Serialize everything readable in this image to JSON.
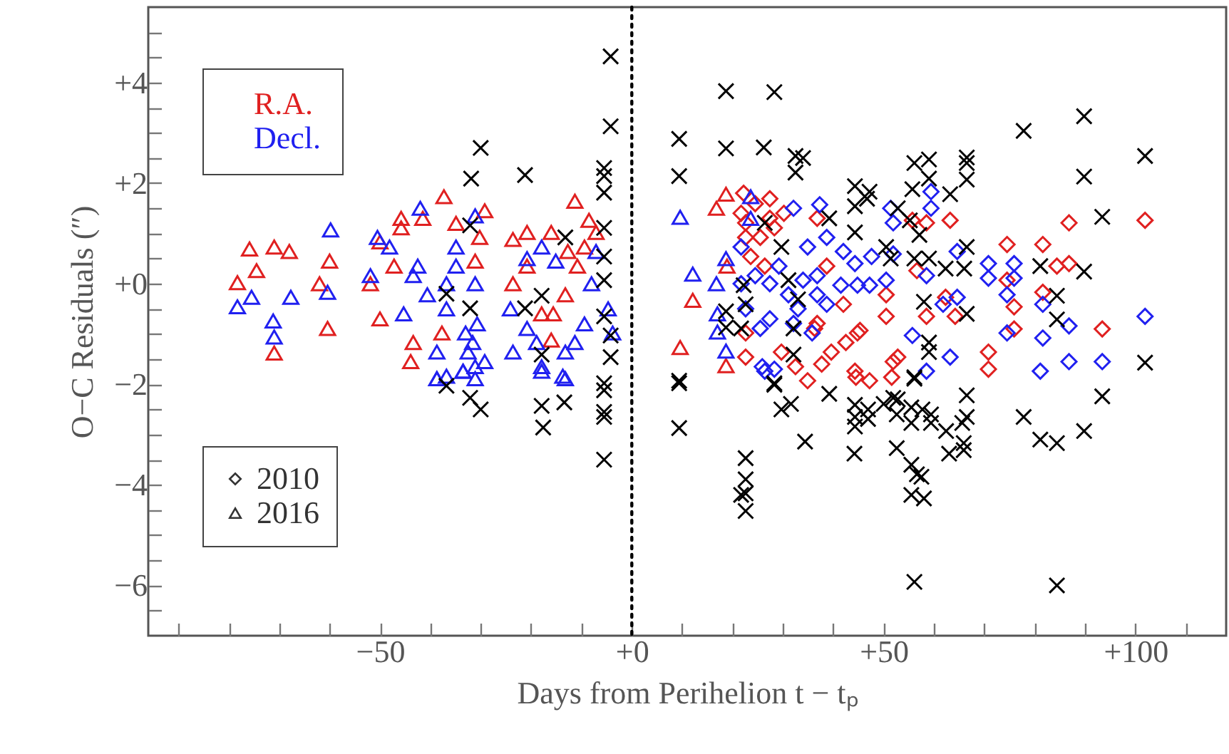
{
  "chart_data": {
    "type": "scatter",
    "xlabel": "Days from Perihelion t − tₚ",
    "ylabel": "O−C Residuals (″)",
    "xlim": [
      -96,
      118
    ],
    "ylim": [
      -7,
      5.5
    ],
    "xticks": [
      {
        "value": -90,
        "label": null
      },
      {
        "value": -80,
        "label": null
      },
      {
        "value": -70,
        "label": null
      },
      {
        "value": -60,
        "label": null
      },
      {
        "value": -50,
        "label": "−50"
      },
      {
        "value": -40,
        "label": null
      },
      {
        "value": -30,
        "label": null
      },
      {
        "value": -20,
        "label": null
      },
      {
        "value": -10,
        "label": null
      },
      {
        "value": 0,
        "label": "+0"
      },
      {
        "value": 10,
        "label": null
      },
      {
        "value": 20,
        "label": null
      },
      {
        "value": 30,
        "label": null
      },
      {
        "value": 40,
        "label": null
      },
      {
        "value": 50,
        "label": "+50"
      },
      {
        "value": 60,
        "label": null
      },
      {
        "value": 70,
        "label": null
      },
      {
        "value": 80,
        "label": null
      },
      {
        "value": 90,
        "label": null
      },
      {
        "value": 100,
        "label": "+100"
      },
      {
        "value": 110,
        "label": null
      }
    ],
    "yticks": [
      {
        "value": -6.5,
        "label": null
      },
      {
        "value": -6,
        "label": "−6"
      },
      {
        "value": -5.5,
        "label": null
      },
      {
        "value": -5,
        "label": null
      },
      {
        "value": -4.5,
        "label": null
      },
      {
        "value": -4,
        "label": "−4"
      },
      {
        "value": -3.5,
        "label": null
      },
      {
        "value": -3,
        "label": null
      },
      {
        "value": -2.5,
        "label": null
      },
      {
        "value": -2,
        "label": "−2"
      },
      {
        "value": -1.5,
        "label": null
      },
      {
        "value": -1,
        "label": null
      },
      {
        "value": -0.5,
        "label": null
      },
      {
        "value": 0,
        "label": "+0"
      },
      {
        "value": 0.5,
        "label": null
      },
      {
        "value": 1,
        "label": null
      },
      {
        "value": 1.5,
        "label": null
      },
      {
        "value": 2,
        "label": "+2"
      },
      {
        "value": 2.5,
        "label": null
      },
      {
        "value": 3,
        "label": null
      },
      {
        "value": 3.5,
        "label": null
      },
      {
        "value": 4,
        "label": "+4"
      },
      {
        "value": 4.5,
        "label": null
      },
      {
        "value": 5,
        "label": null
      }
    ],
    "legend": "left",
    "annotations": [
      "2010",
      "2016"
    ],
    "ref_lines": [
      {
        "axis": "x",
        "value": 0,
        "color": "#000000",
        "line_style": "dotted"
      }
    ],
    "series": [
      {
        "color": "#e02020",
        "marker": "diamond",
        "x": [
          22.2,
          27.4,
          22.6,
          25.5,
          27.4,
          30.2,
          23.6,
          26.4,
          36.8,
          38.7,
          36.3,
          22.6,
          29.7,
          32.5,
          34.9,
          37.7,
          39.6,
          42,
          42.5,
          44.3,
          45.3,
          47.2,
          50.5,
          50.5,
          51.9,
          52.8,
          55.7,
          56.6,
          58.5,
          58.5,
          62.3,
          63.2,
          64.2,
          70.8,
          70.8,
          74.5,
          74.5,
          75.9,
          75.9,
          81.6,
          81.6,
          84.4,
          86.8,
          86.8,
          93.4,
          101.9,
          44.8,
          44.5,
          51.6,
          21.7,
          24.5,
          28.3,
          22.6,
          36.8,
          22.6
        ],
        "values": [
          1.8,
          1.69,
          1.21,
          0.92,
          1.3,
          1.4,
          0.54,
          0.35,
          1.3,
          0.35,
          -0.89,
          -1.46,
          -1.36,
          -1.65,
          -1.93,
          -1.6,
          -1.36,
          -0.41,
          -1.17,
          -1.74,
          -0.93,
          -1.93,
          -0.22,
          -0.65,
          -1.55,
          -1.46,
          1.26,
          0.26,
          1.21,
          -0.65,
          -0.27,
          1.26,
          -0.65,
          -1.36,
          -1.7,
          0.78,
          0.07,
          -0.46,
          -0.9,
          0.78,
          -0.17,
          0.35,
          0.4,
          1.21,
          -0.9,
          1.26,
          -0.98,
          -1.86,
          -1.86,
          1.4,
          1.59,
          1.11,
          0.92,
          -0.79,
          -0.98
        ]
      },
      {
        "color": "#2020f0",
        "marker": "diamond",
        "x": [
          32.1,
          37.3,
          38.7,
          42,
          41.5,
          44.8,
          47.2,
          44.3,
          47.6,
          51.4,
          51.9,
          51.9,
          50.5,
          55.7,
          58.5,
          59.4,
          59.4,
          61.8,
          64.6,
          64.6,
          63.2,
          70.8,
          70.8,
          75.9,
          75.9,
          74.5,
          74.5,
          81.1,
          81.6,
          81.6,
          86.8,
          86.8,
          93.4,
          101.9,
          25.9,
          28.3,
          25.5,
          27.4,
          33,
          35.8,
          38.7,
          36.8,
          26.4,
          58.5,
          21.7,
          22.6,
          24.5,
          27.4,
          29.2,
          31.1,
          34,
          36.8,
          21.7,
          34.9,
          32.1
        ],
        "values": [
          1.5,
          1.57,
          0.92,
          0.64,
          -0.03,
          -0.03,
          -0.03,
          0.4,
          0.54,
          1.5,
          1.21,
          0.59,
          0.07,
          -1.03,
          0.16,
          1.83,
          1.5,
          -0.41,
          0.64,
          -0.27,
          -1.46,
          0.4,
          0.11,
          0.4,
          0.11,
          -0.22,
          -0.98,
          -1.74,
          -0.41,
          -1.08,
          -0.84,
          -1.55,
          -1.55,
          -0.65,
          -1.65,
          -1.7,
          -0.89,
          -0.7,
          -0.5,
          -0.98,
          -0.41,
          0.16,
          -1.74,
          -1.74,
          0,
          -0.5,
          0.16,
          0,
          0.35,
          -0.22,
          0.07,
          -0.22,
          0.73,
          0.73,
          -0.79
        ]
      },
      {
        "name": "R.A.",
        "color": "#e02020",
        "marker": "triangle",
        "x": [
          -75.9,
          -71,
          -68,
          -78.3,
          -74.5,
          -71,
          -60.4,
          -60,
          -62,
          -37.3,
          -45.8,
          -45.8,
          -41.5,
          -50,
          -43.4,
          -43.9,
          -29.2,
          -30.2,
          -51.9,
          -47.2,
          -34.9,
          -31.1,
          -37.7,
          -50,
          -11.3,
          -20.8,
          -23.6,
          -16,
          -8.5,
          -12.7,
          -23.6,
          -20.8,
          -17.9,
          -15.6,
          -13.2,
          -16,
          -7.1,
          -9.4,
          -10.8,
          9.6,
          12.1,
          16.8,
          18.7,
          18.7,
          18.9
        ],
        "values": [
          0.69,
          0.73,
          0.64,
          0.02,
          0.26,
          -1.38,
          -0.89,
          0.45,
          0,
          1.73,
          1.3,
          1.11,
          1.3,
          -0.7,
          -1.17,
          -1.55,
          1.45,
          0.92,
          0,
          0.35,
          1.2,
          0.45,
          -0.98,
          0.83,
          1.64,
          1.02,
          0.88,
          1.02,
          1.26,
          0.64,
          0,
          0.35,
          -0.6,
          -0.6,
          -0.22,
          -1.12,
          1.02,
          0.73,
          0.35,
          -1.27,
          -0.33,
          1.5,
          1.78,
          -1.63,
          0.35
        ]
      },
      {
        "name": "Decl.",
        "color": "#2020f0",
        "marker": "triangle",
        "x": [
          -78.3,
          -75.5,
          -71.2,
          -71,
          -67.7,
          -59.8,
          -60.4,
          -42,
          -50.5,
          -48.1,
          -43.4,
          -40.6,
          -36.8,
          -34.9,
          -33,
          -32.5,
          -31.1,
          -38.7,
          -36.8,
          -33.5,
          -31.1,
          -45.3,
          -51.9,
          -29.2,
          -38.7,
          -36.8,
          -42.5,
          -34.9,
          -31.1,
          -30.7,
          -31.6,
          -38.7,
          -33.5,
          -31.1,
          -23.6,
          -20.8,
          -17.9,
          -15.1,
          -20.8,
          -18.9,
          -17.9,
          -13.2,
          -11.3,
          -9.4,
          -7.1,
          -8,
          -4.7,
          -3.8,
          -24.1,
          -13.7,
          -17.9,
          -13.2,
          9.6,
          12.1,
          16.8,
          17,
          17,
          18.7,
          18.7,
          23.6,
          23.6
        ],
        "values": [
          -0.46,
          -0.27,
          -0.74,
          -1.06,
          -0.27,
          1.07,
          -0.17,
          1.5,
          0.92,
          0.73,
          0.16,
          -0.22,
          0,
          0.73,
          -0.98,
          -1.36,
          -1.65,
          -1.89,
          -1.84,
          -1.74,
          1.35,
          -0.6,
          0.16,
          -1.55,
          -1.36,
          -0.5,
          0.35,
          0.35,
          0,
          -0.8,
          -1.17,
          -1.89,
          -1.74,
          -1.89,
          -1.36,
          0.5,
          0.73,
          0.45,
          -0.89,
          -1.17,
          -1.65,
          -1.36,
          -1.17,
          -0.8,
          0.64,
          0,
          -0.5,
          -0.98,
          -0.5,
          -1.84,
          -1.74,
          -1.89,
          1.32,
          0.19,
          0,
          -0.6,
          -0.96,
          0.5,
          -1.34,
          1.73,
          1.3
        ]
      },
      {
        "color": "#000000",
        "marker": "cross",
        "x": [
          -4.2,
          -4.2,
          -30,
          -31.9,
          -21.2,
          -5.5,
          -5.5,
          -5.5,
          -5.5,
          -5.5,
          -5.5,
          -5.5,
          -4.2,
          -4.2,
          -32.1,
          -36.8,
          -32.1,
          -13.2,
          -17.9,
          -21.2,
          -17.9,
          -36.8,
          -32.1,
          -30,
          -17.9,
          -17.6,
          -13.4,
          -5.5,
          -5.5,
          -5.5,
          -5.5,
          -5.5,
          9.4,
          9.4,
          18.7,
          28.3,
          18.7,
          26.2,
          32.5,
          34,
          32.5,
          44.3,
          47.2,
          56.1,
          59,
          59,
          66.5,
          66.5,
          66.5,
          63.2,
          77.8,
          89.8,
          89.8,
          101.9,
          93.4,
          39.2,
          44.3,
          44.3,
          46.7,
          52.8,
          55.7,
          55.2,
          57.1,
          51.4,
          59,
          56.1,
          50.5,
          62.3,
          66,
          66.5,
          81.1,
          89.8,
          84.4,
          84.4,
          66.5,
          58,
          32.1,
          32.1,
          18.7,
          18.7,
          21.7,
          22.2,
          22.6,
          26.4,
          29.7,
          31.1,
          33,
          59,
          59,
          101.9,
          9.4,
          28.3,
          56.1,
          9.4,
          9.4,
          28.3,
          29.7,
          31.6,
          34.4,
          39.2,
          44.3,
          44.3,
          44.3,
          44.2,
          46.9,
          46.9,
          50,
          51.9,
          52.8,
          52.6,
          55.5,
          55.5,
          52.6,
          55.5,
          56.6,
          57.5,
          55.5,
          58,
          56.1,
          57.7,
          59.4,
          59.4,
          62.4,
          66.5,
          66.5,
          65.6,
          65.9,
          65.9,
          63,
          77.8,
          81.1,
          84.4,
          89.8,
          93.4,
          22.6,
          22.6,
          22.6,
          21.7,
          22.6,
          56.1,
          84.4
        ],
        "values": [
          4.52,
          3.13,
          2.7,
          2.09,
          2.16,
          2.3,
          2.14,
          1.81,
          1.11,
          0.54,
          0.07,
          -0.65,
          -1.03,
          -1.46,
          1.16,
          -0.2,
          -0.49,
          0.92,
          -0.24,
          -0.49,
          -1.41,
          -2.03,
          -2.27,
          -2.5,
          -2.43,
          -2.86,
          -2.36,
          -1.98,
          -2.12,
          -2.55,
          -2.65,
          -3.5,
          2.88,
          2.14,
          3.83,
          3.81,
          2.69,
          2.71,
          2.54,
          2.5,
          2.21,
          1.94,
          1.83,
          2.4,
          2.47,
          2.09,
          2.51,
          2.4,
          2.07,
          1.78,
          3.04,
          3.33,
          2.13,
          2.54,
          1.33,
          1.3,
          1.54,
          1.02,
          1.69,
          1.5,
          1.88,
          1.26,
          0.97,
          0.5,
          0.5,
          0.5,
          0.73,
          0.3,
          0.3,
          0.73,
          0.35,
          0.24,
          -0.24,
          -0.71,
          -0.6,
          -0.36,
          -0.89,
          -1.41,
          -0.55,
          -0.87,
          -0.89,
          -0.03,
          -0.41,
          1.21,
          0.73,
          0.07,
          -0.31,
          -1.17,
          -1.36,
          -1.57,
          -1.93,
          -1.98,
          -1.89,
          -1.98,
          -2.87,
          -2.01,
          -2.5,
          -2.39,
          -3.14,
          -2.19,
          -2.41,
          -2.65,
          -2.84,
          -3.38,
          -2.5,
          -2.69,
          -2.39,
          -2.27,
          -2.3,
          -2.6,
          -2.46,
          -2.77,
          -3.27,
          -3.6,
          -3.79,
          -3.84,
          -4.2,
          -4.27,
          -1.86,
          -2.5,
          -2.6,
          -2.77,
          -2.93,
          -2.22,
          -2.65,
          -2.77,
          -3.17,
          -3.31,
          -3.38,
          -2.65,
          -3.1,
          -3.17,
          -2.93,
          -2.24,
          -3.47,
          -3.89,
          -4.17,
          -4.2,
          -4.52,
          -5.93,
          -6.0
        ]
      }
    ]
  }
}
